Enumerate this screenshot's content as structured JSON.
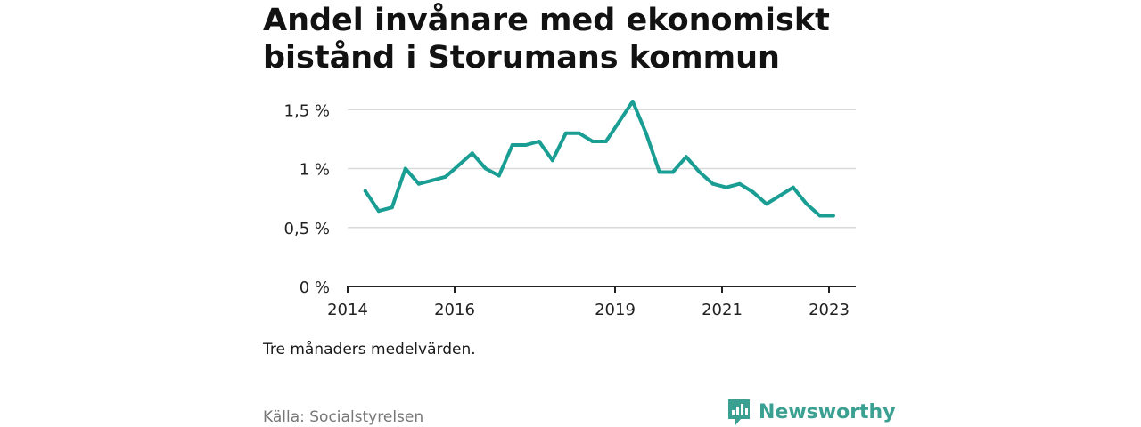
{
  "title": "Andel invånare med ekonomiskt bistånd i Storumans kommun",
  "note": "Tre månaders medelvärden.",
  "source": "Källa: Socialstyrelsen",
  "brand": {
    "name": "Newsworthy",
    "icon": "newsworthy-logo-icon"
  },
  "colors": {
    "line": "#1a9e94",
    "grid": "#d9d9d9",
    "axis": "#222222",
    "brand": "#3aa192"
  },
  "chart_data": {
    "type": "line",
    "title": "Andel invånare med ekonomiskt bistånd i Storumans kommun",
    "xlabel": "",
    "ylabel": "",
    "x_ticks": [
      "2014",
      "2016",
      "2019",
      "2021",
      "2023"
    ],
    "x_tick_values": [
      2014.0,
      2016.0,
      2019.0,
      2021.0,
      2023.0
    ],
    "y_ticks": [
      "0 %",
      "0,5 %",
      "1 %",
      "1,5 %"
    ],
    "y_tick_values": [
      0,
      0.5,
      1.0,
      1.5
    ],
    "xlim": [
      2014.0,
      2023.5
    ],
    "ylim": [
      0,
      1.6
    ],
    "grid": true,
    "series": [
      {
        "x": [
          2014.33,
          2014.58,
          2014.83,
          2015.08,
          2015.33,
          2015.58,
          2015.83,
          2016.08,
          2016.33,
          2016.58,
          2016.83,
          2017.08,
          2017.33,
          2017.58,
          2017.83,
          2018.08,
          2018.33,
          2018.58,
          2018.83,
          2019.08,
          2019.33,
          2019.58,
          2019.83,
          2020.08,
          2020.33,
          2020.58,
          2020.83,
          2021.08,
          2021.33,
          2021.58,
          2021.83,
          2022.08,
          2022.33,
          2022.58,
          2022.83,
          2023.08
        ],
        "values": [
          0.81,
          0.64,
          0.67,
          1.0,
          0.87,
          0.9,
          0.93,
          1.03,
          1.13,
          1.0,
          0.94,
          1.2,
          1.2,
          1.23,
          1.07,
          1.3,
          1.3,
          1.23,
          1.23,
          1.4,
          1.57,
          1.3,
          0.97,
          0.97,
          1.1,
          0.97,
          0.87,
          0.84,
          0.87,
          0.8,
          0.7,
          0.77,
          0.84,
          0.7,
          0.6,
          0.6
        ]
      }
    ]
  }
}
